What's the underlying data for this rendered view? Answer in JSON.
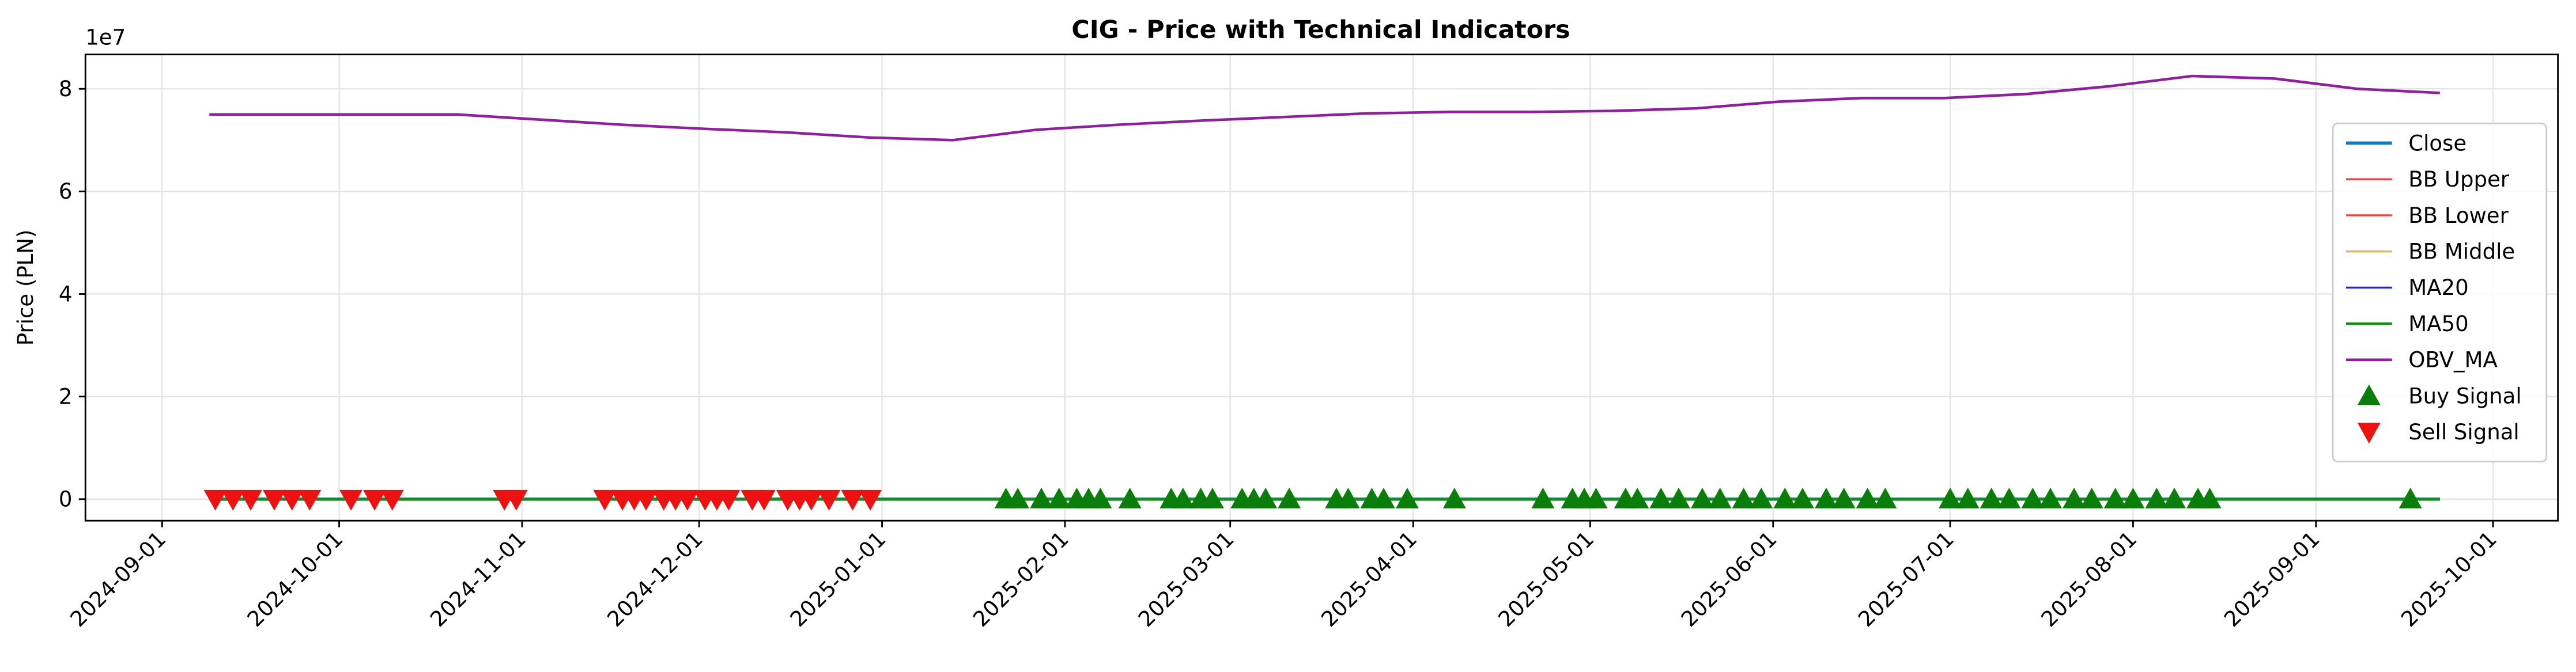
{
  "chart_data": {
    "type": "line",
    "title": "CIG - Price with Technical Indicators",
    "ylabel": "Price (PLN)",
    "y_offset_label": "1e7",
    "xlim": [
      "2024-08-19",
      "2025-10-12"
    ],
    "xticks": [
      "2024-09-01",
      "2024-10-01",
      "2024-11-01",
      "2024-12-01",
      "2025-01-01",
      "2025-02-01",
      "2025-03-01",
      "2025-04-01",
      "2025-05-01",
      "2025-06-01",
      "2025-07-01",
      "2025-08-01",
      "2025-09-01",
      "2025-10-01"
    ],
    "ylim": [
      -4200000,
      86700000
    ],
    "yticks": [
      {
        "value": 0,
        "label": "0"
      },
      {
        "value": 20000000,
        "label": "2"
      },
      {
        "value": 40000000,
        "label": "4"
      },
      {
        "value": 60000000,
        "label": "6"
      },
      {
        "value": 80000000,
        "label": "8"
      }
    ],
    "grid": true,
    "legend": "right",
    "x": [
      "2024-09-09",
      "2024-09-23",
      "2024-10-07",
      "2024-10-21",
      "2024-11-04",
      "2024-11-18",
      "2024-12-02",
      "2024-12-16",
      "2024-12-30",
      "2025-01-13",
      "2025-01-27",
      "2025-02-10",
      "2025-02-24",
      "2025-03-10",
      "2025-03-24",
      "2025-04-07",
      "2025-04-21",
      "2025-05-05",
      "2025-05-19",
      "2025-06-02",
      "2025-06-16",
      "2025-06-30",
      "2025-07-14",
      "2025-07-28",
      "2025-08-11",
      "2025-08-25",
      "2025-09-08",
      "2025-09-22"
    ],
    "series": [
      {
        "name": "Close",
        "color": "#1f77b4",
        "style": "line",
        "width": 2,
        "values": [
          0.62,
          0.6,
          0.58,
          0.57,
          0.55,
          0.52,
          0.5,
          0.48,
          0.47,
          0.5,
          0.55,
          0.58,
          0.6,
          0.62,
          0.63,
          0.62,
          0.64,
          0.66,
          0.68,
          0.7,
          0.71,
          0.72,
          0.74,
          0.76,
          0.78,
          0.77,
          0.75,
          0.74
        ]
      },
      {
        "name": "BB Upper",
        "color": "#ff3b3b",
        "style": "line",
        "width": 1.2,
        "values": [
          0.7,
          0.68,
          0.66,
          0.64,
          0.62,
          0.6,
          0.57,
          0.55,
          0.54,
          0.57,
          0.62,
          0.65,
          0.67,
          0.69,
          0.7,
          0.7,
          0.71,
          0.73,
          0.75,
          0.77,
          0.78,
          0.79,
          0.81,
          0.83,
          0.85,
          0.84,
          0.82,
          0.81
        ]
      },
      {
        "name": "BB Lower",
        "color": "#ff3b3b",
        "style": "line",
        "width": 1.2,
        "values": [
          0.54,
          0.52,
          0.5,
          0.5,
          0.48,
          0.45,
          0.43,
          0.41,
          0.4,
          0.43,
          0.48,
          0.51,
          0.53,
          0.55,
          0.56,
          0.54,
          0.57,
          0.59,
          0.61,
          0.63,
          0.64,
          0.65,
          0.67,
          0.69,
          0.71,
          0.7,
          0.68,
          0.67
        ]
      },
      {
        "name": "BB Middle",
        "color": "#f2b233",
        "style": "line",
        "width": 1.2,
        "values": [
          0.62,
          0.6,
          0.58,
          0.57,
          0.55,
          0.52,
          0.5,
          0.48,
          0.47,
          0.5,
          0.55,
          0.58,
          0.6,
          0.62,
          0.63,
          0.62,
          0.64,
          0.66,
          0.68,
          0.7,
          0.71,
          0.72,
          0.74,
          0.76,
          0.78,
          0.77,
          0.75,
          0.74
        ]
      },
      {
        "name": "MA20",
        "color": "#2222dd",
        "style": "line",
        "width": 1.2,
        "values": [
          0.62,
          0.6,
          0.58,
          0.57,
          0.55,
          0.52,
          0.5,
          0.48,
          0.47,
          0.5,
          0.55,
          0.58,
          0.6,
          0.62,
          0.63,
          0.62,
          0.64,
          0.66,
          0.68,
          0.7,
          0.71,
          0.72,
          0.74,
          0.76,
          0.78,
          0.77,
          0.75,
          0.74
        ]
      },
      {
        "name": "MA50",
        "color": "#1a8a1a",
        "style": "line",
        "width": 1.6,
        "values": [
          0.63,
          0.62,
          0.6,
          0.59,
          0.57,
          0.55,
          0.53,
          0.51,
          0.5,
          0.51,
          0.53,
          0.55,
          0.57,
          0.59,
          0.61,
          0.62,
          0.63,
          0.64,
          0.66,
          0.68,
          0.69,
          0.7,
          0.72,
          0.74,
          0.76,
          0.76,
          0.76,
          0.75
        ]
      },
      {
        "name": "OBV_MA",
        "color": "#8e1f9e",
        "style": "line",
        "width": 1.6,
        "values": [
          75000000,
          75000000,
          75000000,
          75000000,
          74000000,
          73000000,
          72200000,
          71500000,
          70500000,
          70000000,
          72000000,
          73000000,
          73800000,
          74500000,
          75200000,
          75500000,
          75500000,
          75700000,
          76200000,
          77500000,
          78200000,
          78200000,
          79000000,
          80500000,
          82500000,
          82000000,
          80000000,
          79200000
        ]
      },
      {
        "name": "Buy Signal",
        "color": "#0a7d0a",
        "style": "triangle-up",
        "x": [
          "2025-01-22",
          "2025-01-24",
          "2025-01-28",
          "2025-01-31",
          "2025-02-03",
          "2025-02-05",
          "2025-02-07",
          "2025-02-12",
          "2025-02-19",
          "2025-02-21",
          "2025-02-24",
          "2025-02-26",
          "2025-03-03",
          "2025-03-05",
          "2025-03-07",
          "2025-03-11",
          "2025-03-19",
          "2025-03-21",
          "2025-03-25",
          "2025-03-27",
          "2025-03-31",
          "2025-04-08",
          "2025-04-23",
          "2025-04-28",
          "2025-04-30",
          "2025-05-02",
          "2025-05-07",
          "2025-05-09",
          "2025-05-13",
          "2025-05-16",
          "2025-05-20",
          "2025-05-23",
          "2025-05-27",
          "2025-05-30",
          "2025-06-03",
          "2025-06-06",
          "2025-06-10",
          "2025-06-13",
          "2025-06-17",
          "2025-06-20",
          "2025-07-01",
          "2025-07-04",
          "2025-07-08",
          "2025-07-11",
          "2025-07-15",
          "2025-07-18",
          "2025-07-22",
          "2025-07-25",
          "2025-07-29",
          "2025-08-01",
          "2025-08-05",
          "2025-08-08",
          "2025-08-12",
          "2025-08-14",
          "2025-09-17"
        ],
        "values": [
          0.55,
          0.55,
          0.56,
          0.57,
          0.57,
          0.58,
          0.58,
          0.59,
          0.6,
          0.6,
          0.6,
          0.61,
          0.61,
          0.61,
          0.62,
          0.62,
          0.63,
          0.63,
          0.63,
          0.63,
          0.62,
          0.62,
          0.64,
          0.65,
          0.65,
          0.66,
          0.66,
          0.67,
          0.67,
          0.68,
          0.68,
          0.69,
          0.69,
          0.7,
          0.7,
          0.7,
          0.71,
          0.71,
          0.71,
          0.72,
          0.72,
          0.73,
          0.73,
          0.74,
          0.74,
          0.75,
          0.75,
          0.76,
          0.76,
          0.77,
          0.77,
          0.78,
          0.78,
          0.78,
          0.74
        ]
      },
      {
        "name": "Sell Signal",
        "color": "#ee1111",
        "style": "triangle-down",
        "x": [
          "2024-09-10",
          "2024-09-13",
          "2024-09-16",
          "2024-09-20",
          "2024-09-23",
          "2024-09-26",
          "2024-10-03",
          "2024-10-07",
          "2024-10-10",
          "2024-10-29",
          "2024-10-31",
          "2024-11-15",
          "2024-11-18",
          "2024-11-20",
          "2024-11-22",
          "2024-11-25",
          "2024-11-27",
          "2024-11-29",
          "2024-12-02",
          "2024-12-04",
          "2024-12-06",
          "2024-12-10",
          "2024-12-12",
          "2024-12-16",
          "2024-12-18",
          "2024-12-20",
          "2024-12-23",
          "2024-12-27",
          "2024-12-30"
        ],
        "values": [
          0.62,
          0.61,
          0.61,
          0.6,
          0.6,
          0.59,
          0.58,
          0.58,
          0.57,
          0.56,
          0.55,
          0.53,
          0.52,
          0.52,
          0.51,
          0.51,
          0.51,
          0.5,
          0.5,
          0.5,
          0.49,
          0.49,
          0.49,
          0.48,
          0.48,
          0.48,
          0.47,
          0.47,
          0.47
        ]
      }
    ]
  }
}
